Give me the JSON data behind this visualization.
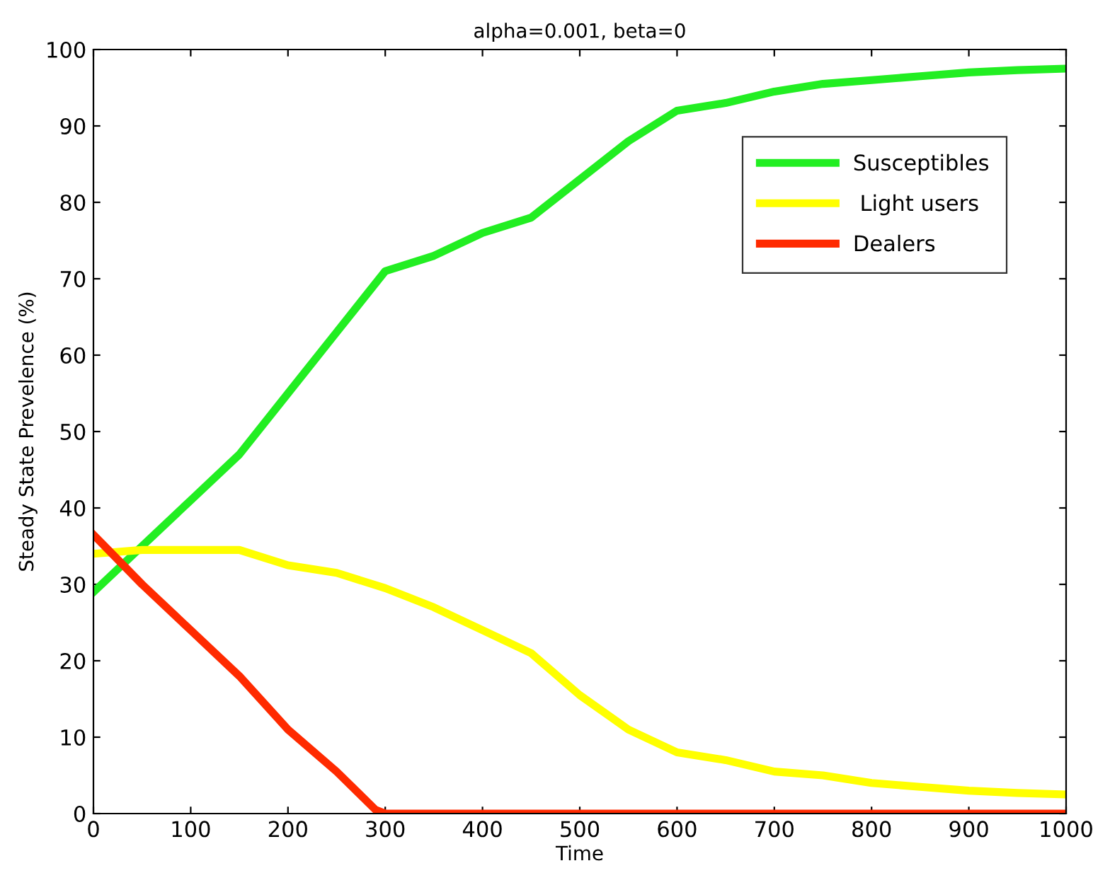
{
  "chart_data": {
    "type": "line",
    "title": "alpha=0.001, beta=0",
    "xlabel": "Time",
    "ylabel": "Steady State Prevelence (%)",
    "x": [
      0,
      50,
      100,
      150,
      200,
      250,
      300,
      350,
      400,
      450,
      500,
      550,
      600,
      650,
      700,
      750,
      800,
      850,
      900,
      950,
      1000
    ],
    "series": [
      {
        "name": "Susceptibles",
        "color": "#22ee22",
        "values": [
          29,
          35,
          41,
          47,
          55,
          63,
          71,
          73,
          76,
          78,
          83,
          88,
          92,
          93,
          94.5,
          95.5,
          96,
          96.5,
          97,
          97.3,
          97.5
        ]
      },
      {
        "name": " Light users",
        "color": "#ffff00",
        "values": [
          34,
          34.5,
          34.5,
          34.5,
          32.5,
          31.5,
          29.5,
          27,
          24,
          21,
          15.5,
          11,
          8,
          7,
          5.5,
          5,
          4,
          3.5,
          3,
          2.7,
          2.5
        ]
      },
      {
        "name": "Dealers",
        "color": "#ff2a00",
        "x": [
          0,
          50,
          100,
          150,
          200,
          250,
          290,
          300,
          400,
          500,
          600,
          700,
          800,
          900,
          1000
        ],
        "values": [
          36.5,
          30,
          24,
          18,
          11,
          5.5,
          0.5,
          0,
          0,
          0,
          0,
          0,
          0,
          0,
          0
        ]
      }
    ],
    "xlim": [
      0,
      1000
    ],
    "ylim": [
      0,
      100
    ],
    "xticks": [
      0,
      100,
      200,
      300,
      400,
      500,
      600,
      700,
      800,
      900,
      1000
    ],
    "yticks": [
      0,
      10,
      20,
      30,
      40,
      50,
      60,
      70,
      80,
      90,
      100
    ],
    "grid": false,
    "legend": "top right",
    "line_style": "solid",
    "marker": "none"
  }
}
